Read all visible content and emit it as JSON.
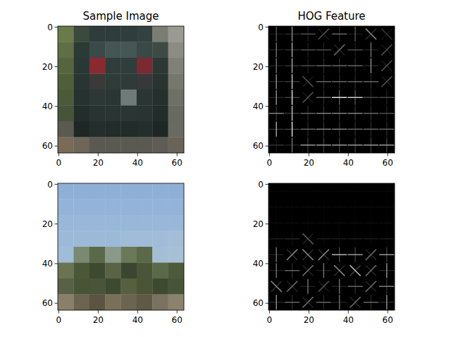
{
  "chart_data": [
    {
      "type": "image",
      "title": "Sample Image",
      "xlim": [
        -0.5,
        63.5
      ],
      "ylim": [
        63.5,
        -0.5
      ],
      "xticks": [
        0,
        20,
        40,
        60
      ],
      "yticks": [
        0,
        20,
        40,
        60
      ],
      "cells": [
        [
          "#6b7a4a",
          "#3a4a3e",
          "#2f3d3a",
          "#2e3c3a",
          "#2f3d3b",
          "#34423f",
          "#7a7e72",
          "#9a9a92"
        ],
        [
          "#5f6e45",
          "#2c3a36",
          "#3a4a48",
          "#455553",
          "#465654",
          "#3a4846",
          "#3e4a46",
          "#8c8c84"
        ],
        [
          "#56653f",
          "#2a3834",
          "#8a2a30",
          "#2f3d3a",
          "#303e3b",
          "#7a2a30",
          "#2c3834",
          "#7f8078"
        ],
        [
          "#505e3c",
          "#283532",
          "#3a3a38",
          "#2e3b38",
          "#2e3b38",
          "#36383a",
          "#283430",
          "#76786e"
        ],
        [
          "#4c5a3a",
          "#26322f",
          "#2c3836",
          "#2a3633",
          "#707a78",
          "#2a3633",
          "#25302d",
          "#6e7068"
        ],
        [
          "#48543a",
          "#232e2b",
          "#283431",
          "#293532",
          "#2a3633",
          "#283431",
          "#222d2a",
          "#686a62"
        ],
        [
          "#5a5a50",
          "#1e2725",
          "#242e2c",
          "#222c2a",
          "#222c2a",
          "#242e2c",
          "#1e2725",
          "#6a6a62"
        ],
        [
          "#7a6a58",
          "#6e6658",
          "#5a5a52",
          "#5a5a52",
          "#5a5a52",
          "#5a5a52",
          "#5e5c54",
          "#6a6458"
        ]
      ]
    },
    {
      "type": "hog",
      "title": "HOG Feature",
      "xlim": [
        -0.5,
        63.5
      ],
      "ylim": [
        63.5,
        -0.5
      ],
      "xticks": [
        0,
        20,
        40,
        60
      ],
      "yticks": [
        0,
        20,
        40,
        60
      ],
      "magnitudes": [
        [
          0.3,
          0.5,
          0.3,
          0.3,
          0.4,
          0.3,
          0.5,
          0.2
        ],
        [
          0.4,
          0.6,
          0.3,
          0.3,
          0.4,
          0.3,
          0.4,
          0.3
        ],
        [
          0.4,
          0.6,
          0.3,
          0.4,
          0.4,
          0.4,
          0.5,
          0.3
        ],
        [
          0.5,
          0.7,
          0.3,
          0.4,
          0.4,
          0.4,
          0.4,
          0.3
        ],
        [
          0.5,
          0.8,
          0.3,
          0.4,
          0.9,
          0.8,
          0.3,
          0.3
        ],
        [
          0.5,
          0.7,
          0.4,
          0.5,
          0.5,
          0.5,
          0.4,
          0.3
        ],
        [
          0.6,
          0.8,
          0.4,
          0.5,
          0.5,
          0.4,
          0.4,
          0.4
        ],
        [
          0.2,
          0.4,
          0.6,
          0.6,
          0.6,
          0.6,
          0.6,
          0.6
        ]
      ],
      "angles": [
        [
          90,
          90,
          0,
          45,
          0,
          90,
          135,
          135
        ],
        [
          90,
          90,
          0,
          0,
          45,
          0,
          90,
          45
        ],
        [
          90,
          90,
          0,
          0,
          0,
          0,
          90,
          45
        ],
        [
          90,
          90,
          135,
          0,
          0,
          0,
          0,
          45
        ],
        [
          90,
          90,
          45,
          0,
          0,
          0,
          0,
          0
        ],
        [
          0,
          90,
          0,
          0,
          0,
          0,
          0,
          0
        ],
        [
          90,
          90,
          0,
          0,
          0,
          0,
          0,
          0
        ],
        [
          0,
          90,
          0,
          0,
          0,
          0,
          0,
          0
        ]
      ]
    },
    {
      "type": "image",
      "xlim": [
        -0.5,
        63.5
      ],
      "ylim": [
        63.5,
        -0.5
      ],
      "xticks": [
        0,
        20,
        40,
        60
      ],
      "yticks": [
        0,
        20,
        40,
        60
      ],
      "cells": [
        [
          "#8fb0d6",
          "#8fb0d6",
          "#8fb0d6",
          "#8fb0d6",
          "#8fb0d6",
          "#8fb0d6",
          "#8fb0d6",
          "#8fb0d6"
        ],
        [
          "#93b3d8",
          "#93b3d8",
          "#93b3d8",
          "#93b3d8",
          "#93b3d8",
          "#93b3d8",
          "#93b3d8",
          "#93b3d8"
        ],
        [
          "#98b7d9",
          "#98b7d9",
          "#98b7d9",
          "#98b7d9",
          "#98b7d9",
          "#98b7d9",
          "#98b7d9",
          "#98b7d9"
        ],
        [
          "#9cbad8",
          "#9cbad8",
          "#9cbad8",
          "#9cbad8",
          "#a0bcd8",
          "#a0bcd8",
          "#a0bcd8",
          "#a4bed8"
        ],
        [
          "#a0bcd6",
          "#7a8a70",
          "#5a6a48",
          "#8a9a8a",
          "#6a7a58",
          "#5a6a48",
          "#a4bed6",
          "#a8c0d6"
        ],
        [
          "#6a7452",
          "#4a5838",
          "#3e4a30",
          "#5a6444",
          "#3a4630",
          "#4a5438",
          "#5a6a48",
          "#4e5a3c"
        ],
        [
          "#5a6048",
          "#485436",
          "#4a5438",
          "#3e4a30",
          "#56603e",
          "#4a5436",
          "#3e4a30",
          "#48543a"
        ],
        [
          "#8a806a",
          "#6a6450",
          "#5a5440",
          "#7a7058",
          "#6a6450",
          "#5e5a46",
          "#7a7260",
          "#8a826c"
        ]
      ]
    },
    {
      "type": "hog",
      "xlim": [
        -0.5,
        63.5
      ],
      "ylim": [
        63.5,
        -0.5
      ],
      "xticks": [
        0,
        20,
        40,
        60
      ],
      "yticks": [
        0,
        20,
        40,
        60
      ],
      "magnitudes": [
        [
          0.03,
          0.03,
          0.03,
          0.03,
          0.03,
          0.03,
          0.03,
          0.03
        ],
        [
          0.04,
          0.04,
          0.04,
          0.04,
          0.04,
          0.04,
          0.04,
          0.04
        ],
        [
          0.05,
          0.05,
          0.05,
          0.05,
          0.05,
          0.05,
          0.05,
          0.05
        ],
        [
          0.1,
          0.15,
          0.35,
          0.1,
          0.1,
          0.1,
          0.1,
          0.1
        ],
        [
          0.4,
          0.5,
          0.5,
          0.5,
          0.7,
          0.6,
          0.4,
          0.6
        ],
        [
          0.4,
          0.4,
          0.4,
          0.4,
          0.5,
          0.7,
          0.4,
          0.5
        ],
        [
          0.5,
          0.4,
          0.4,
          0.3,
          0.4,
          0.4,
          0.4,
          0.5
        ],
        [
          0.5,
          0.4,
          0.4,
          0.4,
          0.4,
          0.4,
          0.4,
          0.5
        ]
      ],
      "angles": [
        [
          0,
          0,
          0,
          0,
          0,
          0,
          0,
          0
        ],
        [
          0,
          0,
          0,
          0,
          0,
          0,
          0,
          0
        ],
        [
          0,
          0,
          0,
          0,
          0,
          0,
          0,
          0
        ],
        [
          0,
          0,
          135,
          0,
          0,
          0,
          0,
          0
        ],
        [
          90,
          45,
          135,
          45,
          0,
          0,
          45,
          0
        ],
        [
          90,
          0,
          45,
          90,
          135,
          135,
          45,
          90
        ],
        [
          135,
          45,
          90,
          45,
          90,
          0,
          45,
          0
        ],
        [
          90,
          0,
          45,
          0,
          90,
          45,
          0,
          90
        ]
      ]
    }
  ]
}
